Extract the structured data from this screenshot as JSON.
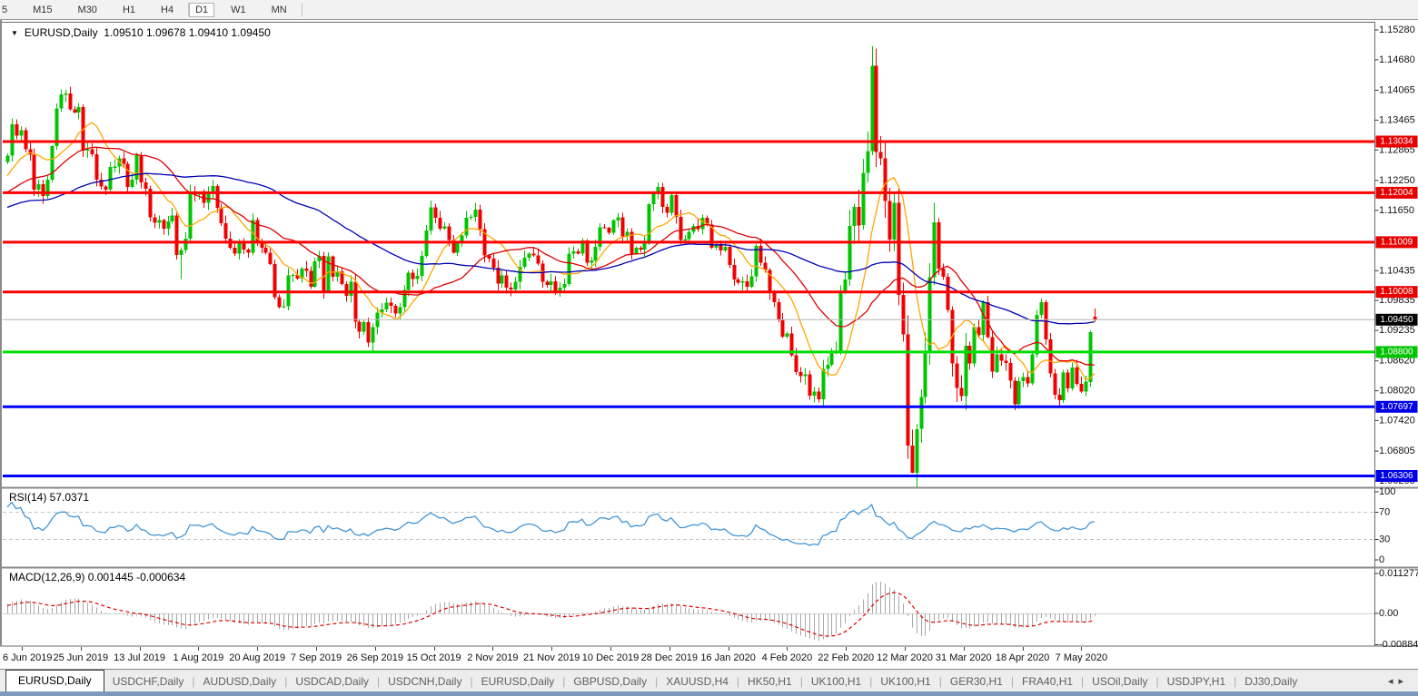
{
  "toolbar": {
    "timeframes": [
      "5",
      "M15",
      "M30",
      "H1",
      "H4",
      "D1",
      "W1",
      "MN"
    ],
    "active": "D1"
  },
  "icons": {
    "dropdown": "▼",
    "tab_scroll_left": "◂",
    "tab_scroll_right": "▸"
  },
  "chart": {
    "symbol_timeframe": "EURUSD,Daily",
    "ohlc_text": "1.09510 1.09678 1.09410 1.09450"
  },
  "indicators": {
    "rsi_label": "RSI(14) 57.0371",
    "macd_label": "MACD(12,26,9) 0.001445 -0.000634"
  },
  "chart_data": {
    "type": "candlestick",
    "symbol": "EURUSD",
    "timeframe": "Daily",
    "last_ohlc": {
      "open": 1.0951,
      "high": 1.09678,
      "low": 1.0941,
      "close": 1.0945
    },
    "colors": {
      "up_candle": "#00c400",
      "down_candle": "#f00000",
      "ma_fast": "#ffa500",
      "ma_mid": "#e00000",
      "ma_slow": "#0000b4",
      "resistance": "#ff0000",
      "support": "#00dd00",
      "blue_level": "#0000ff",
      "current_line": "#b4b4b4",
      "rsi_line": "#4296d6",
      "macd_histogram": "#a8a8a8",
      "macd_signal": "#e00000"
    },
    "moving_averages": [
      {
        "name": "fast",
        "period": 10,
        "color": "#ffa500"
      },
      {
        "name": "mid",
        "period": 25,
        "color": "#e00000"
      },
      {
        "name": "slow",
        "period": 60,
        "color": "#0000b4"
      }
    ],
    "levels": [
      {
        "value": 1.13034,
        "label": "1.13034",
        "color": "#ff0000",
        "badge": "#e60000",
        "width": 3,
        "type": "resistance"
      },
      {
        "value": 1.12004,
        "label": "1.12004",
        "color": "#ff0000",
        "badge": "#e60000",
        "width": 3,
        "type": "resistance"
      },
      {
        "value": 1.11009,
        "label": "1.11009",
        "color": "#ff0000",
        "badge": "#e60000",
        "width": 3,
        "type": "resistance"
      },
      {
        "value": 1.10008,
        "label": "1.10008",
        "color": "#ff0000",
        "badge": "#e60000",
        "width": 3,
        "type": "resistance"
      },
      {
        "value": 1.0945,
        "label": "1.09450",
        "color": "#b4b4b4",
        "badge": "#000000",
        "width": 1,
        "type": "current-price"
      },
      {
        "value": 1.088,
        "label": "1.08800",
        "color": "#00dd00",
        "badge": "#00c400",
        "width": 3,
        "type": "support"
      },
      {
        "value": 1.07697,
        "label": "1.07697",
        "color": "#0000ff",
        "badge": "#0000e6",
        "width": 3,
        "type": "support"
      },
      {
        "value": 1.06306,
        "label": "1.06306",
        "color": "#0000ff",
        "badge": "#0000e6",
        "width": 3,
        "type": "support"
      }
    ],
    "price_axis_ticks": [
      "1.15280",
      "1.14680",
      "1.14065",
      "1.13465",
      "1.12865",
      "1.12250",
      "1.11650",
      "1.10435",
      "1.09835",
      "1.09235",
      "1.08620",
      "1.08020",
      "1.07420",
      "1.06805",
      "1.06205"
    ],
    "rsi": {
      "period": 14,
      "last": 57.0371,
      "level_lines": [
        70,
        30
      ],
      "ticks": [
        "100",
        "70",
        "30",
        "0"
      ],
      "range": [
        0,
        100
      ]
    },
    "macd": {
      "fast": 12,
      "slow": 26,
      "signal": 9,
      "last": 0.001445,
      "last_signal": -0.000634,
      "ticks": [
        {
          "label": "0.011277",
          "value": 0.011277
        },
        {
          "label": "0.00",
          "value": 0
        },
        {
          "label": "-0.008845",
          "value": -0.008845
        }
      ]
    },
    "x_ticks": [
      "6 Jun 2019",
      "25 Jun 2019",
      "13 Jul 2019",
      "1 Aug 2019",
      "20 Aug 2019",
      "7 Sep 2019",
      "26 Sep 2019",
      "15 Oct 2019",
      "2 Nov 2019",
      "21 Nov 2019",
      "10 Dec 2019",
      "28 Dec 2019",
      "16 Jan 2020",
      "4 Feb 2020",
      "22 Feb 2020",
      "12 Mar 2020",
      "31 Mar 2020",
      "18 Apr 2020",
      "7 May 2020"
    ],
    "overrides": {
      "39": {
        "low": 1.1027
      },
      "82": {
        "low": 1.0879
      },
      "182": {
        "low": 1.0778
      },
      "194": {
        "high": 1.1495
      },
      "203": {
        "low": 1.0636
      }
    },
    "pre_closes": [
      1.108,
      1.1095,
      1.1088,
      1.1102,
      1.1115,
      1.1108,
      1.1122,
      1.113,
      1.112,
      1.1135,
      1.1147,
      1.1138,
      1.115,
      1.1142,
      1.1155,
      1.1165,
      1.1155,
      1.1168,
      1.1178,
      1.117,
      1.1182,
      1.1175,
      1.1188,
      1.118,
      1.117,
      1.1162,
      1.1155,
      1.1165,
      1.1158,
      1.117,
      1.1182,
      1.1192,
      1.1185,
      1.1198,
      1.119,
      1.1202,
      1.1212,
      1.1205,
      1.1218,
      1.1228,
      1.122,
      1.1232,
      1.1242,
      1.1252,
      1.1262
    ],
    "closes": [
      1.1275,
      1.1338,
      1.1315,
      1.1326,
      1.1288,
      1.1277,
      1.1207,
      1.1218,
      1.1194,
      1.1227,
      1.1294,
      1.137,
      1.1398,
      1.14,
      1.1368,
      1.1362,
      1.1373,
      1.1285,
      1.1288,
      1.1278,
      1.1227,
      1.1213,
      1.1207,
      1.1252,
      1.1253,
      1.127,
      1.1259,
      1.1212,
      1.1227,
      1.1276,
      1.1221,
      1.1208,
      1.1151,
      1.114,
      1.1145,
      1.1128,
      1.1143,
      1.1155,
      1.1075,
      1.1085,
      1.1108,
      1.1203,
      1.1197,
      1.1199,
      1.118,
      1.12,
      1.1214,
      1.117,
      1.1139,
      1.1108,
      1.109,
      1.1078,
      1.11,
      1.1086,
      1.108,
      1.1145,
      1.1101,
      1.109,
      1.108,
      1.1057,
      1.099,
      1.097,
      1.0972,
      1.1034,
      1.1035,
      1.1028,
      1.1048,
      1.1043,
      1.1011,
      1.1062,
      1.1073,
      1.1003,
      1.1072,
      1.1031,
      1.1042,
      1.1017,
      1.0993,
      1.1021,
      1.0941,
      1.0921,
      1.094,
      1.0899,
      1.093,
      1.0959,
      1.0966,
      1.0979,
      1.0973,
      1.0957,
      1.097,
      1.1005,
      1.104,
      1.1027,
      1.1033,
      1.1073,
      1.1124,
      1.1171,
      1.115,
      1.1128,
      1.1133,
      1.1105,
      1.108,
      1.1099,
      1.1114,
      1.115,
      1.1152,
      1.1166,
      1.1127,
      1.1074,
      1.1068,
      1.105,
      1.1018,
      1.1034,
      1.1009,
      1.1006,
      1.1021,
      1.1051,
      1.107,
      1.1078,
      1.1074,
      1.1058,
      1.1021,
      1.1015,
      1.1022,
      1.1001,
      1.1009,
      1.1017,
      1.1078,
      1.1082,
      1.1078,
      1.1104,
      1.106,
      1.1064,
      1.1092,
      1.1131,
      1.113,
      1.112,
      1.1145,
      1.1151,
      1.1113,
      1.1122,
      1.1078,
      1.109,
      1.1086,
      1.1098,
      1.1177,
      1.1199,
      1.1212,
      1.1172,
      1.116,
      1.1196,
      1.1152,
      1.1105,
      1.1107,
      1.1122,
      1.1134,
      1.1127,
      1.115,
      1.1136,
      1.109,
      1.1095,
      1.1084,
      1.1092,
      1.1055,
      1.1026,
      1.1019,
      1.1022,
      1.1011,
      1.1032,
      1.1093,
      1.106,
      1.1045,
      1.1,
      1.098,
      1.0945,
      1.0911,
      1.0917,
      1.0873,
      1.084,
      1.0831,
      1.0835,
      1.0792,
      1.08,
      1.0785,
      1.0846,
      1.0854,
      1.088,
      1.0881,
      1.1,
      1.1026,
      1.1134,
      1.1172,
      1.1135,
      1.124,
      1.1284,
      1.1456,
      1.1282,
      1.127,
      1.1184,
      1.1106,
      1.118,
      1.0995,
      1.0915,
      1.0692,
      1.0637,
      1.0725,
      1.0789,
      1.088,
      1.103,
      1.1141,
      1.1048,
      1.1031,
      1.0965,
      1.0857,
      1.0808,
      1.0791,
      1.0893,
      1.0857,
      1.093,
      1.0914,
      1.098,
      1.091,
      1.084,
      1.0875,
      1.0862,
      1.0858,
      1.0822,
      1.0775,
      1.0821,
      1.083,
      1.0817,
      1.0875,
      1.0955,
      1.098,
      1.0905,
      1.0837,
      1.0794,
      1.0783,
      1.0839,
      1.0807,
      1.0849,
      1.0816,
      1.08,
      1.082,
      1.092,
      1.0945
    ]
  },
  "tabs": {
    "active_index": 0,
    "items": [
      "EURUSD,Daily",
      "USDCHF,Daily",
      "AUDUSD,Daily",
      "USDCAD,Daily",
      "USDCNH,Daily",
      "EURUSD,Daily",
      "GBPUSD,Daily",
      "XAUUSD,H4",
      "HK50,H1",
      "UK100,H1",
      "UK100,H1",
      "GER30,H1",
      "FRA40,H1",
      "USOil,Daily",
      "USDJPY,H1",
      "DJ30,Daily"
    ]
  }
}
